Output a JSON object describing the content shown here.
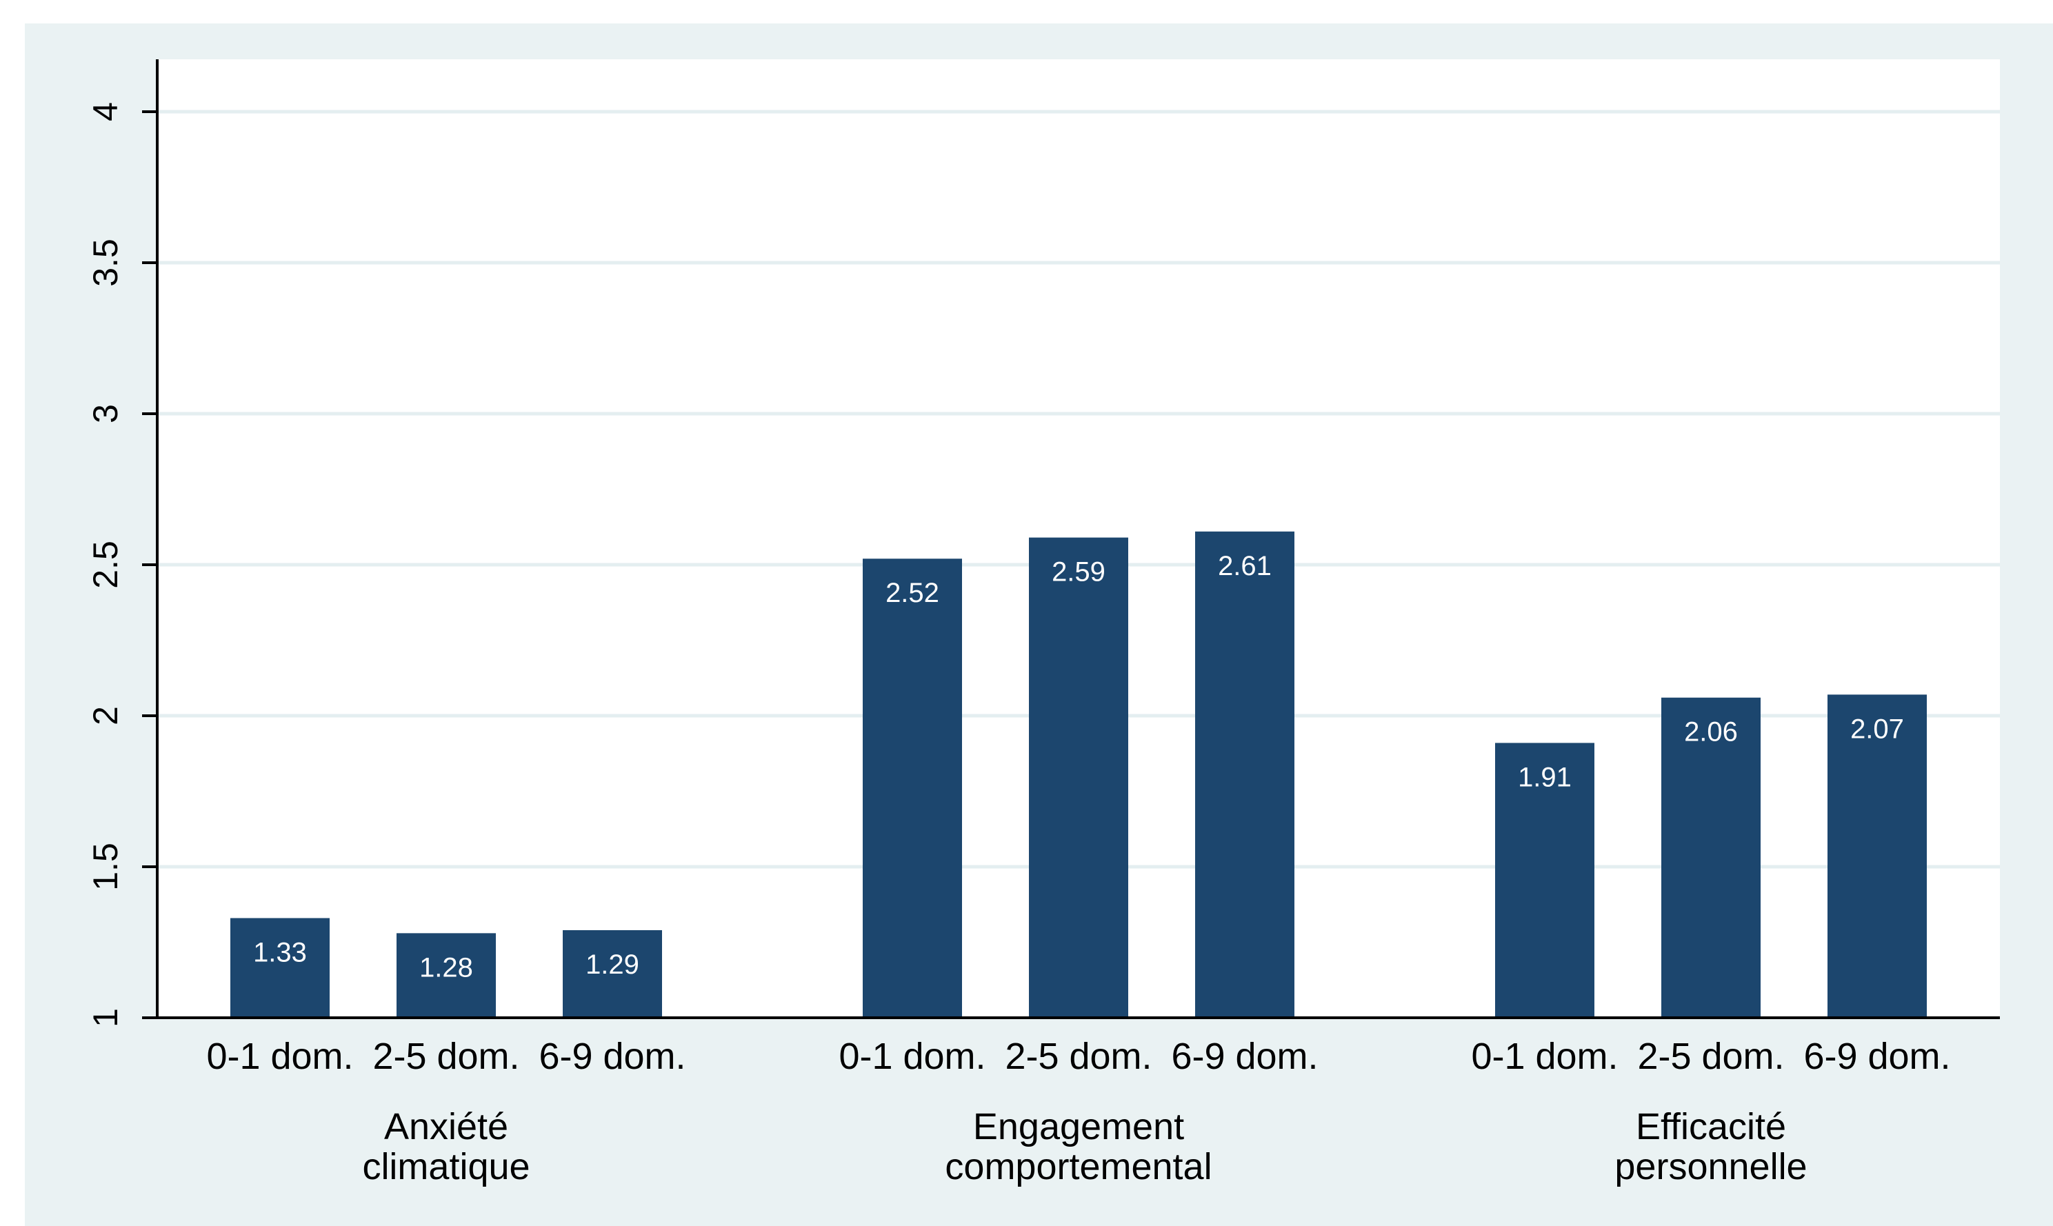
{
  "chart_data": {
    "type": "bar",
    "title": "",
    "xlabel": "",
    "ylabel": "",
    "ylim": [
      1,
      4
    ],
    "yticks": [
      1,
      1.5,
      2,
      2.5,
      3,
      3.5,
      4
    ],
    "ytick_labels": [
      "1",
      "1.5",
      "2",
      "2.5",
      "3",
      "3.5",
      "4"
    ],
    "grid": true,
    "legend": "none",
    "groups": [
      {
        "label_lines": [
          "Anxiété",
          "climatique"
        ],
        "categories": [
          "0-1 dom.",
          "2-5 dom.",
          "6-9 dom."
        ],
        "values": [
          1.33,
          1.28,
          1.29
        ],
        "value_labels": [
          "1.33",
          "1.28",
          "1.29"
        ]
      },
      {
        "label_lines": [
          "Engagement",
          "comportemental"
        ],
        "categories": [
          "0-1 dom.",
          "2-5 dom.",
          "6-9 dom."
        ],
        "values": [
          2.52,
          2.59,
          2.61
        ],
        "value_labels": [
          "2.52",
          "2.59",
          "2.61"
        ]
      },
      {
        "label_lines": [
          "Efficacité",
          "personnelle"
        ],
        "categories": [
          "0-1 dom.",
          "2-5 dom.",
          "6-9 dom."
        ],
        "values": [
          1.91,
          2.06,
          2.07
        ],
        "value_labels": [
          "1.91",
          "2.06",
          "2.07"
        ]
      }
    ],
    "colors": {
      "bar": "#1c466e",
      "outer_background": "#eaf2f3",
      "plot_background": "#ffffff",
      "gridline": "#e4eef0",
      "axis": "#000000",
      "bar_label": "#ffffff",
      "text": "#000000"
    }
  }
}
